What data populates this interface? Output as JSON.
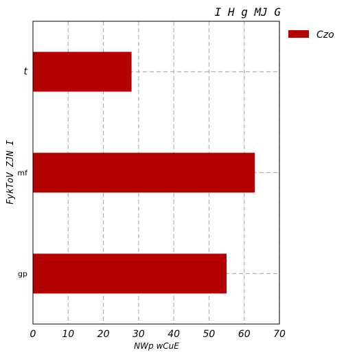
{
  "chart_data": {
    "type": "bar",
    "orientation": "horizontal",
    "title": "I H g MJ G",
    "xlabel": "NWp  wCuE",
    "ylabel": "FykToV ZJN I",
    "categories": [
      "t",
      "mf",
      "gp"
    ],
    "series": [
      {
        "name": "Czo",
        "values": [
          28,
          63,
          55
        ],
        "color": "#b30000"
      }
    ],
    "xlim": [
      0,
      70
    ],
    "xticks": [
      0,
      10,
      20,
      30,
      40,
      50,
      60,
      70
    ],
    "grid": true,
    "grid_style": "dashed",
    "legend_position": "top-right-outside"
  }
}
